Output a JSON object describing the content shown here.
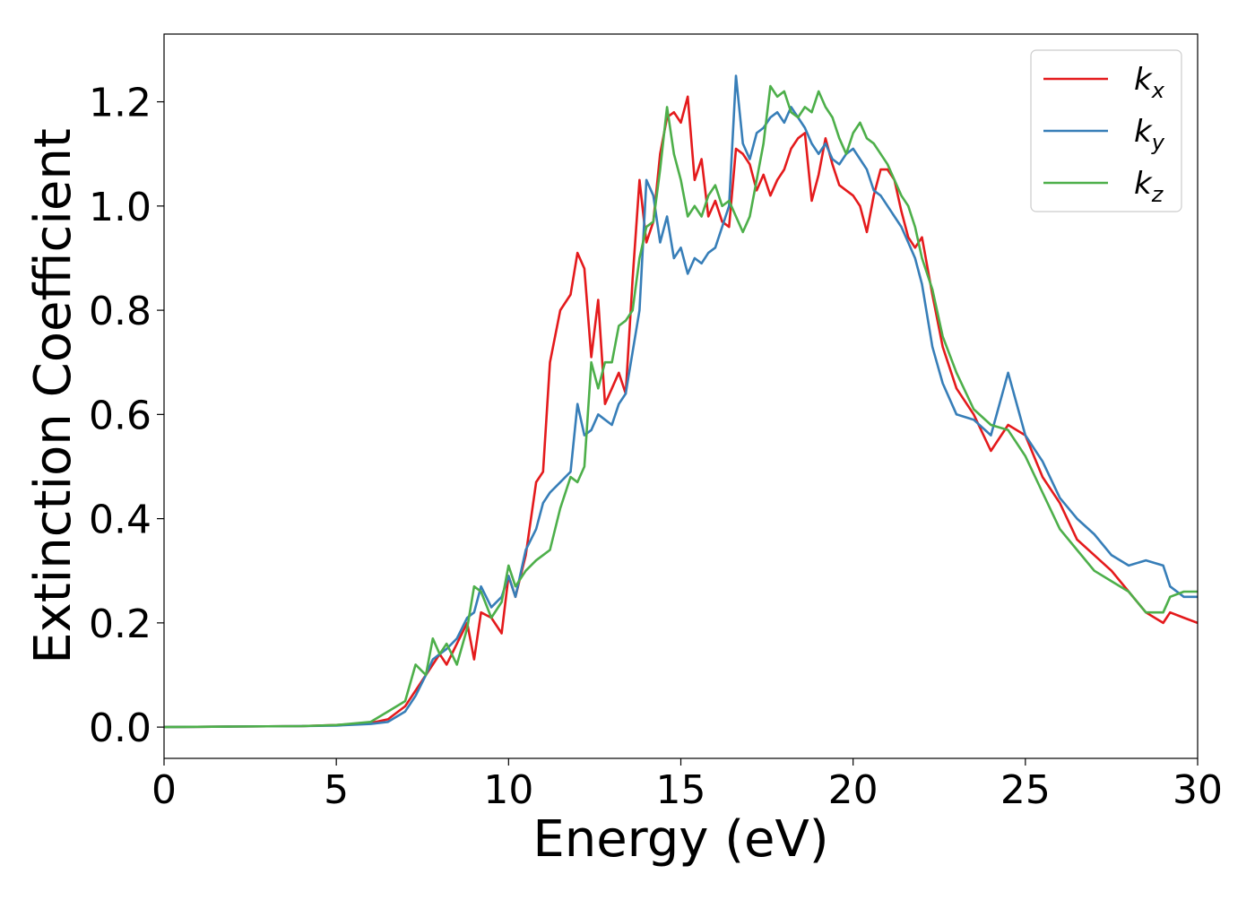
{
  "chart_data": {
    "type": "line",
    "title": "",
    "xlabel": "Energy (eV)",
    "ylabel": "Extinction Coefficient",
    "xlim": [
      0,
      30
    ],
    "ylim": [
      -0.06,
      1.33
    ],
    "xticks": [
      0,
      5,
      10,
      15,
      20,
      25,
      30
    ],
    "yticks": [
      0.0,
      0.2,
      0.4,
      0.6,
      0.8,
      1.0,
      1.2
    ],
    "grid": false,
    "legend_placement": "top-right",
    "series": [
      {
        "name": "k_x",
        "label_base": "k",
        "label_sub": "x",
        "color": "#e41a1c",
        "x": [
          0,
          2,
          4,
          5,
          6,
          6.5,
          7,
          7.3,
          7.6,
          7.8,
          8,
          8.2,
          8.5,
          8.8,
          9,
          9.2,
          9.5,
          9.8,
          10,
          10.2,
          10.5,
          10.8,
          11,
          11.2,
          11.5,
          11.8,
          12,
          12.2,
          12.4,
          12.6,
          12.8,
          13,
          13.2,
          13.4,
          13.6,
          13.8,
          14,
          14.2,
          14.4,
          14.6,
          14.8,
          15,
          15.2,
          15.4,
          15.6,
          15.8,
          16,
          16.2,
          16.4,
          16.6,
          16.8,
          17,
          17.2,
          17.4,
          17.6,
          17.8,
          18,
          18.2,
          18.4,
          18.6,
          18.8,
          19,
          19.2,
          19.4,
          19.6,
          19.8,
          20,
          20.2,
          20.4,
          20.6,
          20.8,
          21,
          21.2,
          21.4,
          21.6,
          21.8,
          22,
          22.3,
          22.6,
          23,
          23.5,
          24,
          24.5,
          25,
          25.5,
          26,
          26.5,
          27,
          27.5,
          28,
          28.5,
          29,
          29.2,
          29.6,
          30
        ],
        "y": [
          0,
          0.001,
          0.002,
          0.004,
          0.008,
          0.015,
          0.04,
          0.07,
          0.1,
          0.12,
          0.14,
          0.12,
          0.16,
          0.2,
          0.13,
          0.22,
          0.21,
          0.18,
          0.29,
          0.25,
          0.33,
          0.47,
          0.49,
          0.7,
          0.8,
          0.83,
          0.91,
          0.88,
          0.71,
          0.82,
          0.62,
          0.65,
          0.68,
          0.64,
          0.86,
          1.05,
          0.93,
          0.97,
          1.1,
          1.17,
          1.18,
          1.16,
          1.21,
          1.05,
          1.09,
          0.98,
          1.01,
          0.97,
          0.96,
          1.11,
          1.1,
          1.08,
          1.03,
          1.06,
          1.02,
          1.05,
          1.07,
          1.11,
          1.13,
          1.14,
          1.01,
          1.06,
          1.13,
          1.08,
          1.04,
          1.03,
          1.02,
          1.0,
          0.95,
          1.02,
          1.07,
          1.07,
          1.05,
          0.99,
          0.94,
          0.92,
          0.94,
          0.83,
          0.73,
          0.65,
          0.6,
          0.53,
          0.58,
          0.56,
          0.48,
          0.43,
          0.36,
          0.33,
          0.3,
          0.26,
          0.22,
          0.2,
          0.22,
          0.21,
          0.2
        ]
      },
      {
        "name": "k_y",
        "label_base": "k",
        "label_sub": "y",
        "color": "#377eb8",
        "x": [
          0,
          2,
          4,
          5,
          6,
          6.5,
          7,
          7.3,
          7.6,
          7.8,
          8,
          8.2,
          8.5,
          8.8,
          9,
          9.2,
          9.5,
          9.8,
          10,
          10.2,
          10.5,
          10.8,
          11,
          11.2,
          11.5,
          11.8,
          12,
          12.2,
          12.4,
          12.6,
          12.8,
          13,
          13.2,
          13.4,
          13.6,
          13.8,
          14,
          14.2,
          14.4,
          14.6,
          14.8,
          15,
          15.2,
          15.4,
          15.6,
          15.8,
          16,
          16.2,
          16.4,
          16.6,
          16.8,
          17,
          17.2,
          17.4,
          17.6,
          17.8,
          18,
          18.2,
          18.4,
          18.6,
          18.8,
          19,
          19.2,
          19.4,
          19.6,
          19.8,
          20,
          20.2,
          20.4,
          20.6,
          20.8,
          21,
          21.2,
          21.4,
          21.6,
          21.8,
          22,
          22.3,
          22.6,
          23,
          23.5,
          24,
          24.5,
          25,
          25.5,
          26,
          26.5,
          27,
          27.5,
          28,
          28.5,
          29,
          29.2,
          29.6,
          30
        ],
        "y": [
          0,
          0.001,
          0.002,
          0.003,
          0.006,
          0.01,
          0.03,
          0.06,
          0.1,
          0.13,
          0.14,
          0.15,
          0.17,
          0.21,
          0.22,
          0.27,
          0.23,
          0.25,
          0.29,
          0.25,
          0.34,
          0.38,
          0.43,
          0.45,
          0.47,
          0.49,
          0.62,
          0.56,
          0.57,
          0.6,
          0.59,
          0.58,
          0.62,
          0.64,
          0.72,
          0.8,
          1.05,
          1.02,
          0.93,
          0.98,
          0.9,
          0.92,
          0.87,
          0.9,
          0.89,
          0.91,
          0.92,
          0.96,
          1.0,
          1.25,
          1.12,
          1.09,
          1.14,
          1.15,
          1.17,
          1.18,
          1.16,
          1.19,
          1.17,
          1.15,
          1.12,
          1.1,
          1.12,
          1.09,
          1.08,
          1.1,
          1.11,
          1.09,
          1.07,
          1.03,
          1.02,
          1.0,
          0.98,
          0.96,
          0.93,
          0.9,
          0.85,
          0.73,
          0.66,
          0.6,
          0.59,
          0.56,
          0.68,
          0.56,
          0.51,
          0.44,
          0.4,
          0.37,
          0.33,
          0.31,
          0.32,
          0.31,
          0.27,
          0.25,
          0.25
        ]
      },
      {
        "name": "k_z",
        "label_base": "k",
        "label_sub": "z",
        "color": "#4daf4a",
        "x": [
          0,
          2,
          4,
          5,
          6,
          6.5,
          7,
          7.3,
          7.6,
          7.8,
          8,
          8.2,
          8.5,
          8.8,
          9,
          9.2,
          9.5,
          9.8,
          10,
          10.2,
          10.5,
          10.8,
          11,
          11.2,
          11.5,
          11.8,
          12,
          12.2,
          12.4,
          12.6,
          12.8,
          13,
          13.2,
          13.4,
          13.6,
          13.8,
          14,
          14.2,
          14.4,
          14.6,
          14.8,
          15,
          15.2,
          15.4,
          15.6,
          15.8,
          16,
          16.2,
          16.4,
          16.6,
          16.8,
          17,
          17.2,
          17.4,
          17.6,
          17.8,
          18,
          18.2,
          18.4,
          18.6,
          18.8,
          19,
          19.2,
          19.4,
          19.6,
          19.8,
          20,
          20.2,
          20.4,
          20.6,
          20.8,
          21,
          21.2,
          21.4,
          21.6,
          21.8,
          22,
          22.3,
          22.6,
          23,
          23.5,
          24,
          24.5,
          25,
          25.5,
          26,
          26.5,
          27,
          27.5,
          28,
          28.5,
          29,
          29.2,
          29.6,
          30
        ],
        "y": [
          0,
          0.001,
          0.002,
          0.004,
          0.01,
          0.03,
          0.05,
          0.12,
          0.1,
          0.17,
          0.14,
          0.16,
          0.12,
          0.19,
          0.27,
          0.26,
          0.21,
          0.24,
          0.31,
          0.27,
          0.3,
          0.32,
          0.33,
          0.34,
          0.42,
          0.48,
          0.47,
          0.5,
          0.7,
          0.65,
          0.7,
          0.7,
          0.77,
          0.78,
          0.8,
          0.9,
          0.96,
          0.97,
          1.07,
          1.19,
          1.1,
          1.05,
          0.98,
          1.0,
          0.98,
          1.02,
          1.04,
          1.0,
          1.01,
          0.98,
          0.95,
          0.98,
          1.05,
          1.12,
          1.23,
          1.21,
          1.22,
          1.18,
          1.17,
          1.19,
          1.18,
          1.22,
          1.19,
          1.17,
          1.13,
          1.1,
          1.14,
          1.16,
          1.13,
          1.12,
          1.1,
          1.08,
          1.05,
          1.02,
          1.0,
          0.96,
          0.9,
          0.84,
          0.75,
          0.68,
          0.61,
          0.58,
          0.57,
          0.52,
          0.45,
          0.38,
          0.34,
          0.3,
          0.28,
          0.26,
          0.22,
          0.22,
          0.25,
          0.26,
          0.26
        ]
      }
    ]
  }
}
